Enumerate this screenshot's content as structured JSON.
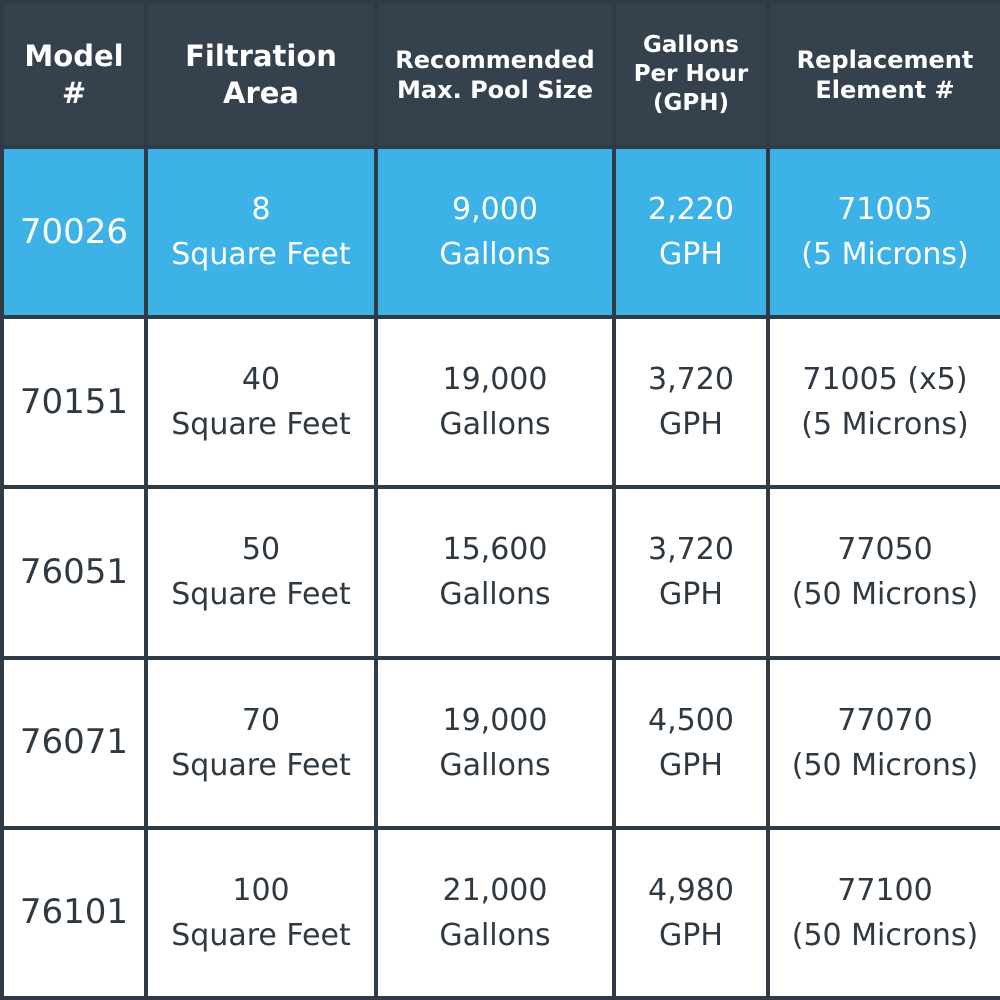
{
  "colors": {
    "header_bg": "#35414d",
    "grid_lines": "#2f3b47",
    "highlight_row": "#3cb2e6",
    "cell_bg": "#ffffff",
    "text_dark": "#2f3942",
    "text_light": "#ffffff"
  },
  "headers": {
    "model": [
      "Model",
      "#"
    ],
    "filtration": [
      "Filtration",
      "Area"
    ],
    "pool_size": [
      "Recommended",
      "Max. Pool Size"
    ],
    "gph": [
      "Gallons",
      "Per Hour",
      "(GPH)"
    ],
    "replacement": [
      "Replacement",
      "Element #"
    ]
  },
  "rows": [
    {
      "highlighted": true,
      "model": "70026",
      "area": [
        "8",
        "Square Feet"
      ],
      "pool": [
        "9,000",
        "Gallons"
      ],
      "gph": [
        "2,220",
        "GPH"
      ],
      "element": [
        "71005",
        "(5 Microns)"
      ]
    },
    {
      "highlighted": false,
      "model": "70151",
      "area": [
        "40",
        "Square Feet"
      ],
      "pool": [
        "19,000",
        "Gallons"
      ],
      "gph": [
        "3,720",
        "GPH"
      ],
      "element": [
        "71005 (x5)",
        "(5 Microns)"
      ]
    },
    {
      "highlighted": false,
      "model": "76051",
      "area": [
        "50",
        "Square Feet"
      ],
      "pool": [
        "15,600",
        "Gallons"
      ],
      "gph": [
        "3,720",
        "GPH"
      ],
      "element": [
        "77050",
        "(50 Microns)"
      ]
    },
    {
      "highlighted": false,
      "model": "76071",
      "area": [
        "70",
        "Square Feet"
      ],
      "pool": [
        "19,000",
        "Gallons"
      ],
      "gph": [
        "4,500",
        "GPH"
      ],
      "element": [
        "77070",
        "(50 Microns)"
      ]
    },
    {
      "highlighted": false,
      "model": "76101",
      "area": [
        "100",
        "Square Feet"
      ],
      "pool": [
        "21,000",
        "Gallons"
      ],
      "gph": [
        "4,980",
        "GPH"
      ],
      "element": [
        "77100",
        "(50 Microns)"
      ]
    }
  ]
}
